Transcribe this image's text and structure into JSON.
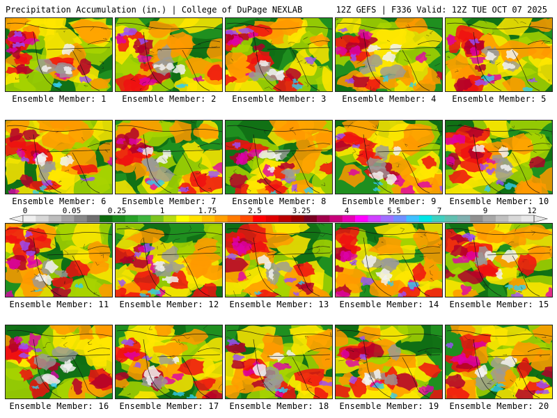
{
  "header": {
    "title": "Precipitation Accumulation (in.) | College of DuPage NEXLAB",
    "run_info": "12Z GEFS | F336 Valid: 12Z TUE OCT 07 2025"
  },
  "legend": {
    "tick_labels": [
      "0",
      "0.05",
      "0.25",
      "1",
      "1.75",
      "2.5",
      "3.25",
      "4",
      "5.5",
      "7",
      "9",
      "12"
    ],
    "colors": [
      "#f0f0f0",
      "#d7d7d7",
      "#bdbdbd",
      "#a3a3a3",
      "#888888",
      "#6e6e6e",
      "#0d6b0d",
      "#1a8a1a",
      "#27a127",
      "#3cb43c",
      "#7cc41e",
      "#b7dc10",
      "#ffff00",
      "#ffe000",
      "#ffc000",
      "#ffa000",
      "#ff7a00",
      "#ff4a00",
      "#ff0000",
      "#e00000",
      "#bb0000",
      "#990000",
      "#7a0020",
      "#a0004a",
      "#c8007a",
      "#e600b4",
      "#ff00ff",
      "#d040ff",
      "#a070ff",
      "#7090ff",
      "#40c0ff",
      "#00e6e6",
      "#40d0c0",
      "#60c0b0",
      "#80b0b0",
      "#909090",
      "#a8a8a8",
      "#c0c0c0",
      "#d8d8d8",
      "#e8e8e8"
    ]
  },
  "palette": {
    "green_dark": "#0f6e14",
    "green": "#1f8f1f",
    "green_light": "#3fb02a",
    "yellow_green": "#a8d400",
    "yellow": "#ffe600",
    "orange": "#ff9900",
    "red": "#ee1111",
    "crimson": "#b0002a",
    "magenta": "#dd00aa",
    "purple": "#9a4dff",
    "gray": "#9a9a9a",
    "white": "#f2f2f2",
    "cyan": "#33ccee",
    "border": "#111111"
  },
  "members": [
    {
      "label": "Ensemble Member: 1"
    },
    {
      "label": "Ensemble Member: 2"
    },
    {
      "label": "Ensemble Member: 3"
    },
    {
      "label": "Ensemble Member: 4"
    },
    {
      "label": "Ensemble Member: 5"
    },
    {
      "label": "Ensemble Member: 6"
    },
    {
      "label": "Ensemble Member: 7"
    },
    {
      "label": "Ensemble Member: 8"
    },
    {
      "label": "Ensemble Member: 9"
    },
    {
      "label": "Ensemble Member: 10"
    },
    {
      "label": "Ensemble Member: 11"
    },
    {
      "label": "Ensemble Member: 12"
    },
    {
      "label": "Ensemble Member: 13"
    },
    {
      "label": "Ensemble Member: 14"
    },
    {
      "label": "Ensemble Member: 15"
    },
    {
      "label": "Ensemble Member: 16"
    },
    {
      "label": "Ensemble Member: 17"
    },
    {
      "label": "Ensemble Member: 18"
    },
    {
      "label": "Ensemble Member: 19"
    },
    {
      "label": "Ensemble Member: 20"
    }
  ]
}
